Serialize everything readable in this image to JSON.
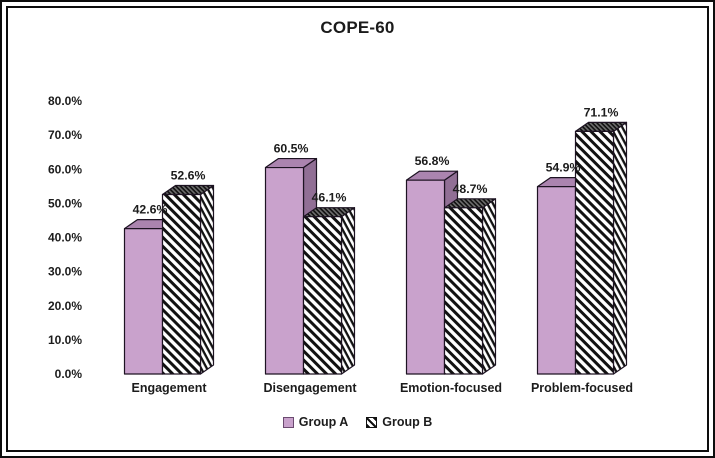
{
  "chart_data": {
    "type": "bar",
    "style": "3d-grouped",
    "title": "COPE-60",
    "categories": [
      "Engagement",
      "Disengagement",
      "Emotion-focused",
      "Problem-focused"
    ],
    "series": [
      {
        "name": "Group A",
        "values": [
          42.6,
          60.5,
          56.8,
          54.9
        ],
        "labels": [
          "42.6%",
          "60.5%",
          "56.8%",
          "54.9%"
        ]
      },
      {
        "name": "Group B",
        "values": [
          52.6,
          46.1,
          48.7,
          71.1
        ],
        "labels": [
          "52.6%",
          "46.1%",
          "48.7%",
          "71.1%"
        ]
      }
    ],
    "y_ticks": [
      {
        "label": "80.0%",
        "value": 80
      },
      {
        "label": "70.0%",
        "value": 70
      },
      {
        "label": "60.0%",
        "value": 60
      },
      {
        "label": "50.0%",
        "value": 50
      },
      {
        "label": "40.0%",
        "value": 40
      },
      {
        "label": "30.0%",
        "value": 30
      },
      {
        "label": "20.0%",
        "value": 20
      },
      {
        "label": "10.0%",
        "value": 10
      },
      {
        "label": "0.0%",
        "value": 0
      }
    ],
    "ylim": [
      0,
      80
    ],
    "grid": false,
    "legend_position": "bottom",
    "colors": {
      "group_a_front": "#c9a2cc",
      "group_a_top": "#ab84af",
      "group_a_side": "#916f95",
      "group_b_stripe": "#111111",
      "group_b_background": "#ffffff",
      "bar_outline": "#1d1322",
      "text": "#1c1c1c",
      "frame": "#0d0d0d"
    }
  }
}
